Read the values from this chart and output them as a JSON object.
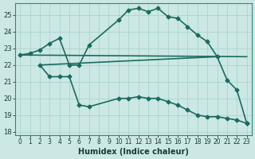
{
  "xlabel": "Humidex (Indice chaleur)",
  "bg_color": "#cce8e4",
  "line_color": "#1a6b60",
  "grid_color": "#aad4cf",
  "xlim": [
    -0.5,
    23.5
  ],
  "ylim": [
    17.8,
    25.7
  ],
  "yticks": [
    18,
    19,
    20,
    21,
    22,
    23,
    24,
    25
  ],
  "xticks": [
    0,
    1,
    2,
    3,
    4,
    5,
    6,
    7,
    8,
    9,
    10,
    11,
    12,
    13,
    14,
    15,
    16,
    17,
    18,
    19,
    20,
    21,
    22,
    23
  ],
  "lines": [
    {
      "x": [
        0,
        1,
        2,
        3,
        4,
        5,
        6,
        7,
        10,
        11,
        12,
        13,
        14,
        15,
        16,
        17,
        18,
        19,
        20,
        21,
        22,
        23
      ],
      "y": [
        22.6,
        22.7,
        22.9,
        23.3,
        23.6,
        22.0,
        22.0,
        23.2,
        24.7,
        25.3,
        25.4,
        25.2,
        25.4,
        24.9,
        24.8,
        24.3,
        23.8,
        23.4,
        22.5,
        21.1,
        20.5,
        18.5
      ],
      "marker": "D",
      "markersize": 2.5,
      "linewidth": 1.2
    },
    {
      "x": [
        0,
        23
      ],
      "y": [
        22.6,
        22.5
      ],
      "marker": null,
      "markersize": 0,
      "linewidth": 1.2
    },
    {
      "x": [
        2,
        20
      ],
      "y": [
        22.0,
        22.5
      ],
      "marker": null,
      "markersize": 0,
      "linewidth": 1.2
    },
    {
      "x": [
        2,
        3,
        4,
        5,
        6,
        7,
        10,
        11,
        12,
        13,
        14,
        15,
        16,
        17,
        18,
        19,
        20,
        21,
        22,
        23
      ],
      "y": [
        22.0,
        21.3,
        21.3,
        21.3,
        19.6,
        19.5,
        20.0,
        20.0,
        20.1,
        20.0,
        20.0,
        19.8,
        19.6,
        19.3,
        19.0,
        18.9,
        18.9,
        18.8,
        18.7,
        18.5
      ],
      "marker": "D",
      "markersize": 2.5,
      "linewidth": 1.2
    }
  ]
}
